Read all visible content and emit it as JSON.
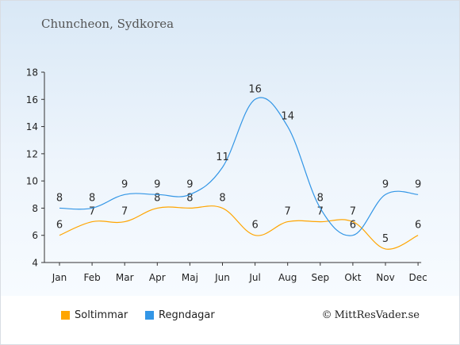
{
  "header": {
    "title": "Chuncheon, Sydkorea"
  },
  "copyright": {
    "symbol": "©",
    "text": "MittResVader.se"
  },
  "colors": {
    "sun": "#FFA500",
    "rain": "#3396E6",
    "axis": "#333333",
    "text": "#222222"
  },
  "chart_data": {
    "type": "line",
    "title": "Chuncheon, Sydkorea",
    "categories": [
      "Jan",
      "Feb",
      "Mar",
      "Apr",
      "Maj",
      "Jun",
      "Jul",
      "Aug",
      "Sep",
      "Okt",
      "Nov",
      "Dec"
    ],
    "series": [
      {
        "name": "Soltimmar",
        "color": "#FFA500",
        "values": [
          6,
          7,
          7,
          8,
          8,
          8,
          6,
          7,
          7,
          7,
          5,
          6
        ]
      },
      {
        "name": "Regndagar",
        "color": "#3396E6",
        "values": [
          8,
          8,
          9,
          9,
          9,
          11,
          16,
          14,
          8,
          6,
          9,
          9
        ]
      }
    ],
    "yticks": [
      4,
      6,
      8,
      10,
      12,
      14,
      16,
      18
    ],
    "ylim": [
      4,
      18
    ],
    "grid": false,
    "legend": "bottom-left"
  }
}
